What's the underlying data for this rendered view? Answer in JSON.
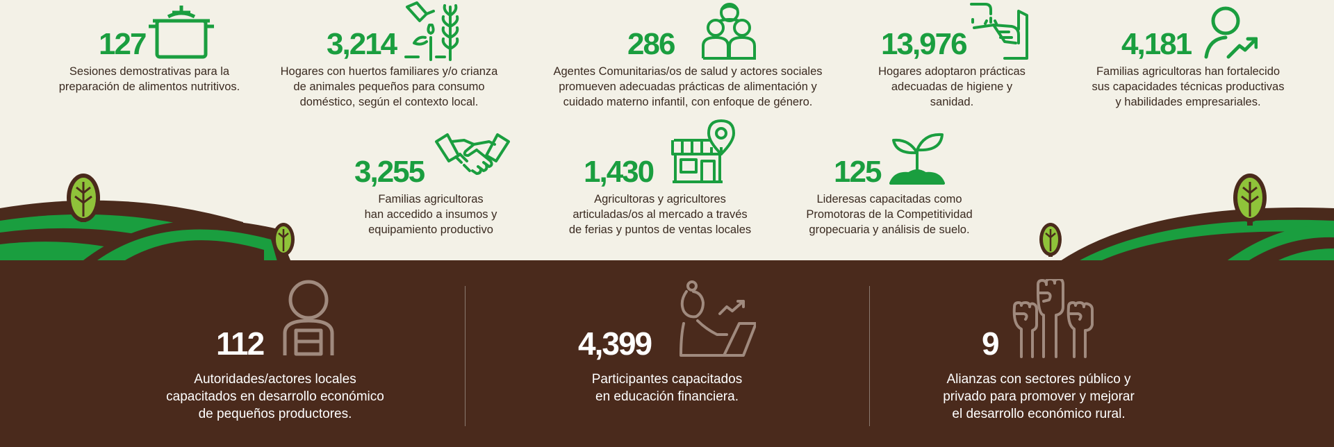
{
  "top_stats": [
    {
      "number": "127",
      "text": "Sesiones demostrativas para la\npreparación de alimentos nutritivos.",
      "icon": "cooking-pot-icon"
    },
    {
      "number": "3,214",
      "text": "Hogares con huertos familiares y/o crianza\nde animales pequeños para consumo\ndoméstico, según el contexto local.",
      "icon": "watering-plant-icon"
    },
    {
      "number": "286",
      "text": "Agentes Comunitarias/os de salud y actores sociales\npromueven adecuadas prácticas de alimentación y\ncuidado materno infantil, con enfoque de género.",
      "icon": "community-group-icon"
    },
    {
      "number": "13,976",
      "text": "Hogares adoptaron prácticas\nadecuadas de higiene y sanidad.",
      "icon": "handwashing-icon"
    },
    {
      "number": "4,181",
      "text": "Familias agricultoras han fortalecido\nsus capacidades técnicas productivas\ny habilidades empresariales.",
      "icon": "person-growth-icon"
    }
  ],
  "middle_stats": [
    {
      "number": "3,255",
      "text": "Familias agricultoras\nhan accedido a insumos y\nequipamiento productivo",
      "icon": "handshake-icon"
    },
    {
      "number": "1,430",
      "text": "Agricultoras y agricultores\narticuladas/os al mercado a través\nde ferias y puntos de ventas locales",
      "icon": "market-store-icon"
    },
    {
      "number": "125",
      "text": "Lideresas capacitadas como\nPromotoras de la Competitividad\ngropecuaria y análisis de suelo.",
      "icon": "sprout-icon"
    }
  ],
  "bottom_stats": [
    {
      "number": "112",
      "text": "Autoridades/actores locales\ncapacitados en desarrollo económico\nde pequeños productores.",
      "icon": "official-person-icon"
    },
    {
      "number": "4,399",
      "text": "Participantes capacitados\nen educación financiera.",
      "icon": "woman-laptop-icon"
    },
    {
      "number": "9",
      "text": "Alianzas con sectores público y\nprivado para promover y mejorar\nel desarrollo económico rural.",
      "icon": "raised-fists-icon"
    }
  ],
  "colors": {
    "green": "#1a9e3f",
    "brown": "#4a2a1c",
    "cream": "#f3f1e7",
    "text": "#3a2a20",
    "tan": "#a08a7e"
  }
}
